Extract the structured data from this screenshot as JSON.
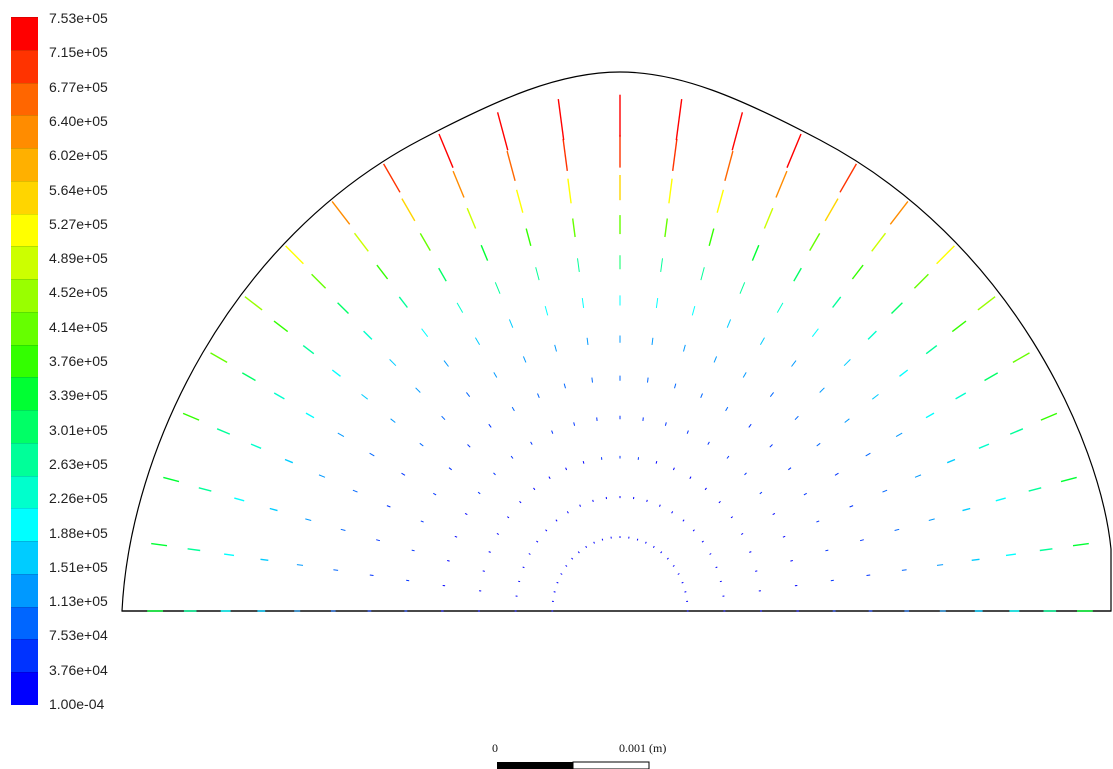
{
  "colorbar": {
    "labels": [
      "7.53e+05",
      "7.15e+05",
      "6.77e+05",
      "6.40e+05",
      "6.02e+05",
      "5.64e+05",
      "5.27e+05",
      "4.89e+05",
      "4.52e+05",
      "4.14e+05",
      "3.76e+05",
      "3.39e+05",
      "3.01e+05",
      "2.63e+05",
      "2.26e+05",
      "1.88e+05",
      "1.51e+05",
      "1.13e+05",
      "7.53e+04",
      "3.76e+04",
      "1.00e-04"
    ],
    "colors": [
      "#ff0000",
      "#ff3300",
      "#ff6600",
      "#ff8c00",
      "#ffb000",
      "#ffd500",
      "#ffff00",
      "#ccff00",
      "#99ff00",
      "#66ff00",
      "#33ff00",
      "#00ff33",
      "#00ff66",
      "#00ff99",
      "#00ffcc",
      "#00ffff",
      "#00ccff",
      "#0099ff",
      "#0066ff",
      "#0033ff",
      "#0000ff"
    ]
  },
  "scale_bar": {
    "start_label": "0",
    "end_label": "0.001 (m)"
  }
}
